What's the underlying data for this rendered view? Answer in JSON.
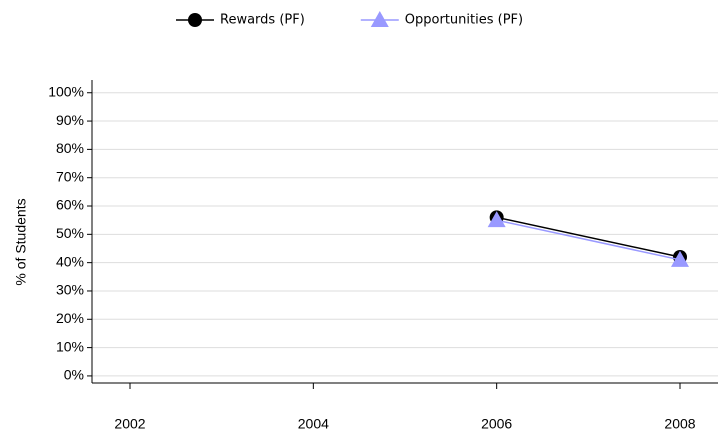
{
  "chart_data": {
    "type": "line",
    "y_label": "% of Students",
    "categories": [
      "2002",
      "2004",
      "2006",
      "2008"
    ],
    "series": [
      {
        "name": "Rewards (PF)",
        "color": "#000000",
        "marker": "circle",
        "values": [
          null,
          null,
          56,
          42
        ]
      },
      {
        "name": "Opportunities (PF)",
        "color": "#9999ff",
        "marker": "triangle",
        "values": [
          null,
          null,
          55,
          41
        ]
      }
    ],
    "ylim": [
      -2.5,
      104.5
    ],
    "yticks": [
      {
        "value": 0,
        "label": "0%"
      },
      {
        "value": 10,
        "label": "10%"
      },
      {
        "value": 20,
        "label": "20%"
      },
      {
        "value": 30,
        "label": "30%"
      },
      {
        "value": 40,
        "label": "40%"
      },
      {
        "value": 50,
        "label": "50%"
      },
      {
        "value": 60,
        "label": "60%"
      },
      {
        "value": 70,
        "label": "70%"
      },
      {
        "value": 80,
        "label": "80%"
      },
      {
        "value": 90,
        "label": "90%"
      },
      {
        "value": 100,
        "label": "100%"
      }
    ],
    "grid": true
  }
}
